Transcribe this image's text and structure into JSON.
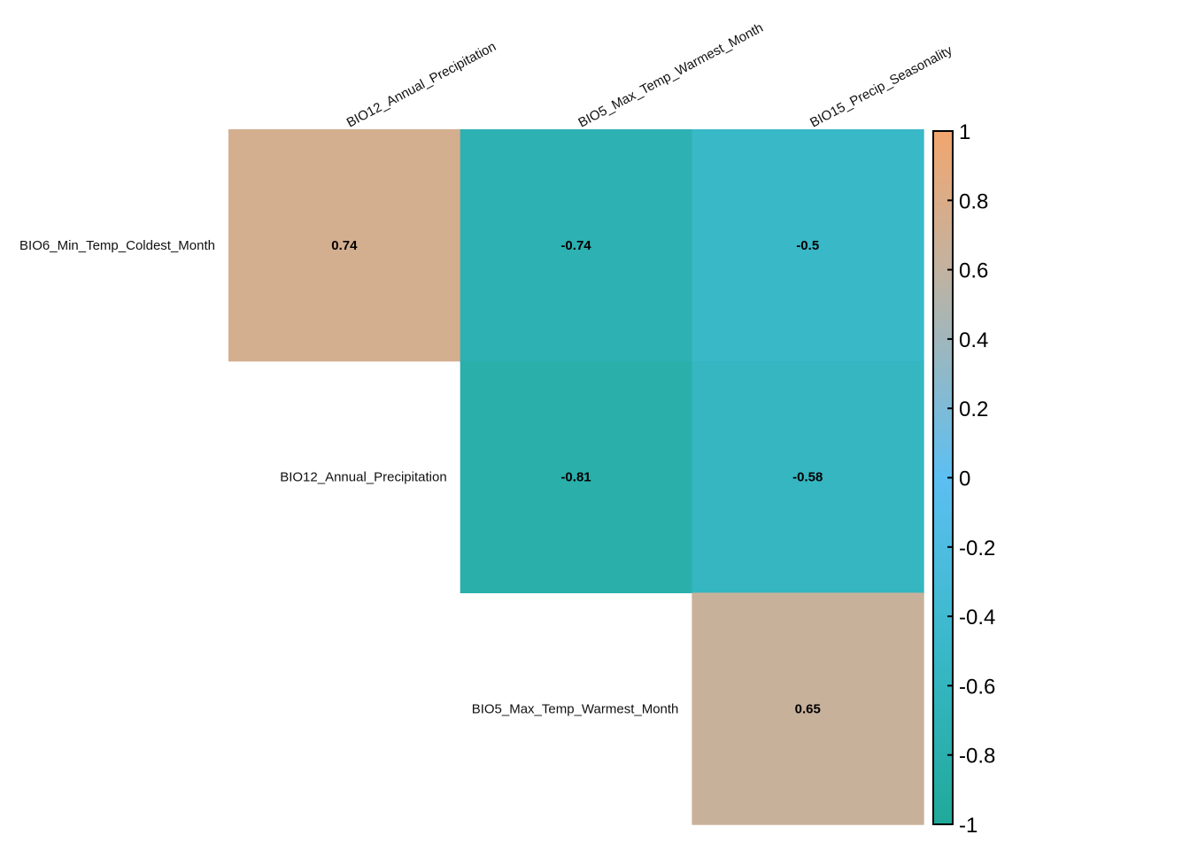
{
  "chart_data": {
    "type": "heatmap",
    "row_labels": [
      "BIO6_Min_Temp_Coldest_Month",
      "BIO12_Annual_Precipitation",
      "BIO5_Max_Temp_Warmest_Month"
    ],
    "col_labels": [
      "BIO12_Annual_Precipitation",
      "BIO5_Max_Temp_Warmest_Month",
      "BIO15_Precip_Seasonality"
    ],
    "cells": [
      {
        "row": 0,
        "col": 0,
        "value": 0.74,
        "label": "0.74"
      },
      {
        "row": 0,
        "col": 1,
        "value": -0.74,
        "label": "-0.74"
      },
      {
        "row": 0,
        "col": 2,
        "value": -0.5,
        "label": "-0.5"
      },
      {
        "row": 1,
        "col": 1,
        "value": -0.81,
        "label": "-0.81"
      },
      {
        "row": 1,
        "col": 2,
        "value": -0.58,
        "label": "-0.58"
      },
      {
        "row": 2,
        "col": 2,
        "value": 0.65,
        "label": "0.65"
      }
    ],
    "colorbar": {
      "range": [
        -1,
        1
      ],
      "ticks": [
        "1",
        "0.8",
        "0.6",
        "0.4",
        "0.2",
        "0",
        "-0.2",
        "-0.4",
        "-0.6",
        "-0.8",
        "-1"
      ],
      "tick_values": [
        1,
        0.8,
        0.6,
        0.4,
        0.2,
        0,
        -0.2,
        -0.4,
        -0.6,
        -0.8,
        -1
      ],
      "gradient": [
        {
          "value": -1,
          "color": "#20A99A"
        },
        {
          "value": -0.5,
          "color": "#39B8C8"
        },
        {
          "value": 0,
          "color": "#5CBFF2"
        },
        {
          "value": 0.6,
          "color": "#C2B2A0"
        },
        {
          "value": 1,
          "color": "#F2A66E"
        }
      ],
      "placement": "right"
    },
    "title": "",
    "xlabel": "",
    "ylabel": ""
  }
}
